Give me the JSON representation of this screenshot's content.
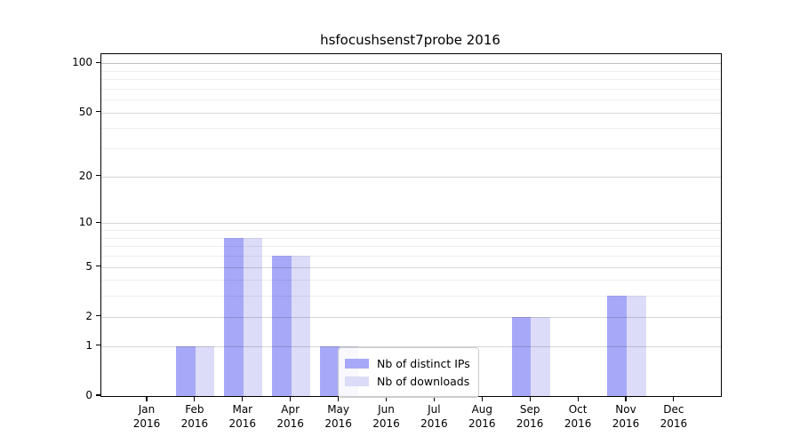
{
  "title": "hsfocushsenst7probe 2016",
  "chart_data": {
    "type": "bar",
    "title": "hsfocushsenst7probe 2016",
    "categories": [
      "Jan 2016",
      "Feb 2016",
      "Mar 2016",
      "Apr 2016",
      "May 2016",
      "Jun 2016",
      "Jul 2016",
      "Aug 2016",
      "Sep 2016",
      "Oct 2016",
      "Nov 2016",
      "Dec 2016"
    ],
    "x_months": [
      "Jan",
      "Feb",
      "Mar",
      "Apr",
      "May",
      "Jun",
      "Jul",
      "Aug",
      "Sep",
      "Oct",
      "Nov",
      "Dec"
    ],
    "x_year": "2016",
    "series": [
      {
        "name": "Nb of distinct IPs",
        "color": "#a8a8f8",
        "values": [
          0,
          1,
          8,
          6,
          1,
          0,
          0,
          0,
          2,
          0,
          3,
          0
        ]
      },
      {
        "name": "Nb of downloads",
        "color": "#dcdcf8",
        "values": [
          0,
          1,
          8,
          6,
          1,
          0,
          0,
          0,
          2,
          0,
          3,
          0
        ]
      }
    ],
    "y_axis": {
      "scale": "log1p",
      "ticks": [
        100,
        50,
        20,
        10,
        5,
        2,
        1,
        0
      ],
      "tick_labels": [
        "100",
        "50",
        "20",
        "10",
        "5",
        "2",
        "1",
        "0"
      ],
      "minor_ticks": [
        3,
        4,
        6,
        7,
        8,
        9,
        30,
        40,
        60,
        70,
        80,
        90
      ],
      "range": [
        0,
        113
      ]
    },
    "grid": "both",
    "legend_position": "lower center",
    "colors": {
      "bar_dark": "#a8a8f8",
      "bar_light": "#dcdcf8",
      "grid_major": "rgba(0,0,0,0.16)",
      "grid_major_top": "rgba(0,0,0,0.25)",
      "grid_minor": "rgba(0,0,0,0.065)"
    }
  }
}
